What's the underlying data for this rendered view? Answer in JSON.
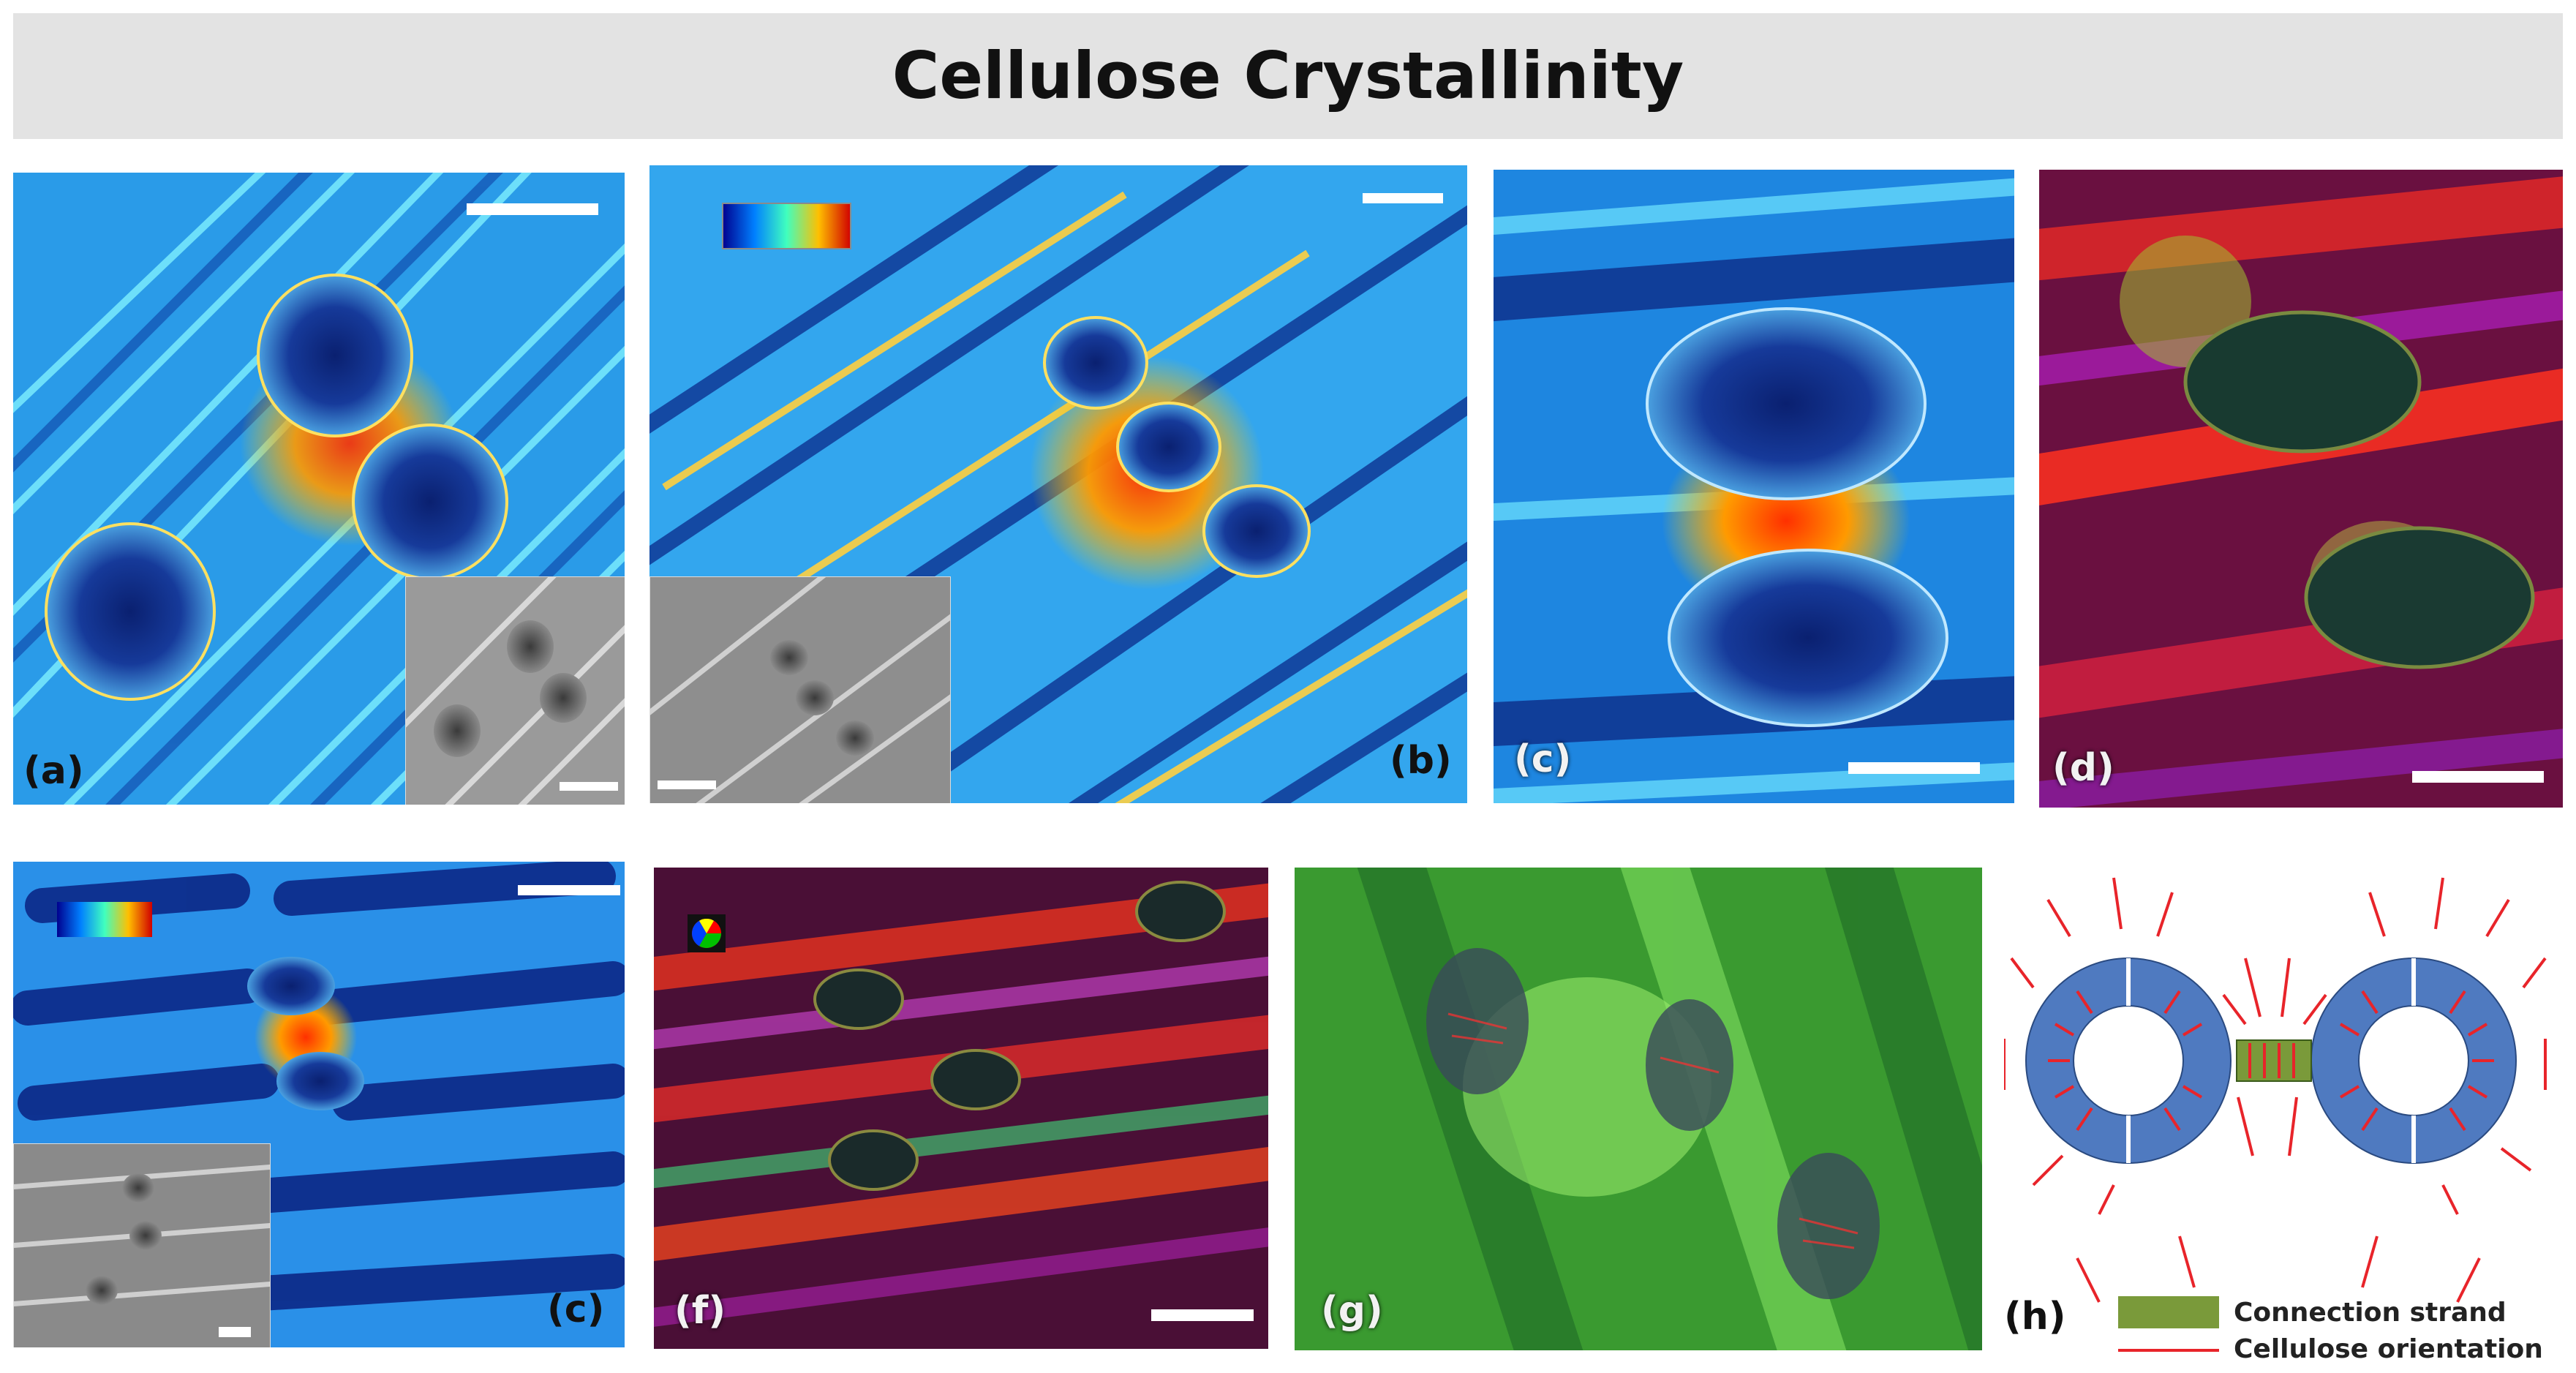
{
  "title": "Cellulose Crystallinity",
  "panels": {
    "a": {
      "label": "(a)"
    },
    "b": {
      "label": "(b)"
    },
    "c1": {
      "label": "(c)"
    },
    "d": {
      "label": "(d)"
    },
    "c2": {
      "label": "(c)"
    },
    "f": {
      "label": "(f)"
    },
    "g": {
      "label": "(g)"
    },
    "h": {
      "label": "(h)"
    }
  },
  "legend": {
    "connection_strand": "Connection strand",
    "cellulose_orientation": "Cellulose orientation",
    "strand_color": "#7a9a3a",
    "orientation_color": "#e8242a",
    "ring_color": "#4f7ac0"
  },
  "colors": {
    "jet_low": "#00007f",
    "jet_mid": "#00bfff",
    "jet_high": "#ff2000"
  }
}
